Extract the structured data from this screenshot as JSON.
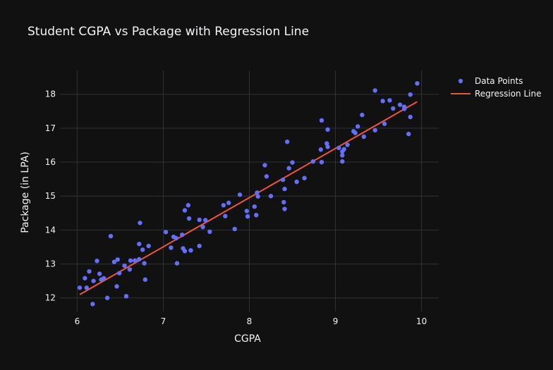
{
  "chart_data": {
    "type": "scatter",
    "title": "Student CGPA vs Package with Regression Line",
    "xlabel": "CGPA",
    "ylabel": "Package (in LPA)",
    "xlim": [
      5.8,
      10.2
    ],
    "ylim": [
      11.6,
      18.7
    ],
    "xticks": [
      6,
      7,
      8,
      9,
      10
    ],
    "yticks": [
      12,
      13,
      14,
      15,
      16,
      17,
      18
    ],
    "grid": true,
    "legend_position": "top-right",
    "colors": {
      "background": "#111111",
      "grid": "#283442",
      "points": "#636efa",
      "line": "#ef553b",
      "text": "#f2f5fa"
    },
    "series": [
      {
        "name": "Data Points",
        "mode": "markers",
        "points": [
          [
            6.03,
            12.3
          ],
          [
            6.09,
            12.58
          ],
          [
            6.11,
            12.3
          ],
          [
            6.14,
            12.78
          ],
          [
            6.18,
            11.82
          ],
          [
            6.19,
            12.5
          ],
          [
            6.23,
            13.09
          ],
          [
            6.26,
            12.71
          ],
          [
            6.28,
            12.54
          ],
          [
            6.31,
            12.58
          ],
          [
            6.35,
            12.0
          ],
          [
            6.39,
            13.82
          ],
          [
            6.43,
            13.06
          ],
          [
            6.46,
            12.34
          ],
          [
            6.47,
            13.13
          ],
          [
            6.49,
            12.73
          ],
          [
            6.55,
            12.95
          ],
          [
            6.57,
            12.05
          ],
          [
            6.61,
            12.84
          ],
          [
            6.62,
            13.1
          ],
          [
            6.67,
            13.1
          ],
          [
            6.72,
            13.59
          ],
          [
            6.72,
            13.14
          ],
          [
            6.73,
            14.21
          ],
          [
            6.76,
            13.42
          ],
          [
            6.78,
            13.02
          ],
          [
            6.79,
            12.54
          ],
          [
            6.83,
            13.53
          ],
          [
            7.03,
            13.94
          ],
          [
            7.09,
            13.48
          ],
          [
            7.12,
            13.8
          ],
          [
            7.15,
            13.76
          ],
          [
            7.16,
            13.02
          ],
          [
            7.22,
            13.86
          ],
          [
            7.23,
            13.46
          ],
          [
            7.25,
            13.38
          ],
          [
            7.25,
            14.58
          ],
          [
            7.29,
            14.73
          ],
          [
            7.3,
            14.34
          ],
          [
            7.32,
            13.4
          ],
          [
            7.42,
            13.53
          ],
          [
            7.42,
            14.3
          ],
          [
            7.46,
            14.09
          ],
          [
            7.49,
            14.29
          ],
          [
            7.54,
            13.95
          ],
          [
            7.7,
            14.73
          ],
          [
            7.72,
            14.41
          ],
          [
            7.76,
            14.8
          ],
          [
            7.83,
            14.03
          ],
          [
            7.89,
            15.04
          ],
          [
            7.97,
            14.56
          ],
          [
            7.98,
            14.4
          ],
          [
            8.06,
            14.69
          ],
          [
            8.08,
            14.44
          ],
          [
            8.09,
            15.1
          ],
          [
            8.1,
            14.99
          ],
          [
            8.18,
            15.91
          ],
          [
            8.2,
            15.58
          ],
          [
            8.25,
            15.0
          ],
          [
            8.39,
            15.48
          ],
          [
            8.4,
            14.82
          ],
          [
            8.41,
            14.62
          ],
          [
            8.41,
            15.21
          ],
          [
            8.44,
            16.6
          ],
          [
            8.46,
            15.82
          ],
          [
            8.5,
            15.99
          ],
          [
            8.55,
            15.42
          ],
          [
            8.64,
            15.53
          ],
          [
            8.74,
            16.02
          ],
          [
            8.83,
            16.37
          ],
          [
            8.84,
            16.0
          ],
          [
            8.84,
            17.23
          ],
          [
            8.9,
            16.55
          ],
          [
            8.91,
            16.45
          ],
          [
            8.91,
            16.96
          ],
          [
            9.04,
            16.42
          ],
          [
            9.08,
            16.31
          ],
          [
            9.08,
            16.02
          ],
          [
            9.08,
            16.2
          ],
          [
            9.1,
            16.38
          ],
          [
            9.14,
            16.51
          ],
          [
            9.21,
            16.91
          ],
          [
            9.23,
            16.86
          ],
          [
            9.26,
            17.05
          ],
          [
            9.31,
            17.39
          ],
          [
            9.33,
            16.75
          ],
          [
            9.46,
            18.11
          ],
          [
            9.46,
            16.94
          ],
          [
            9.55,
            17.8
          ],
          [
            9.57,
            17.13
          ],
          [
            9.63,
            17.82
          ],
          [
            9.67,
            17.58
          ],
          [
            9.75,
            17.69
          ],
          [
            9.8,
            17.57
          ],
          [
            9.8,
            17.63
          ],
          [
            9.85,
            16.83
          ],
          [
            9.87,
            17.33
          ],
          [
            9.87,
            17.99
          ],
          [
            9.95,
            18.32
          ]
        ]
      },
      {
        "name": "Regression Line",
        "mode": "line",
        "x": [
          6.03,
          9.95
        ],
        "y": [
          12.1,
          17.78
        ]
      }
    ]
  }
}
